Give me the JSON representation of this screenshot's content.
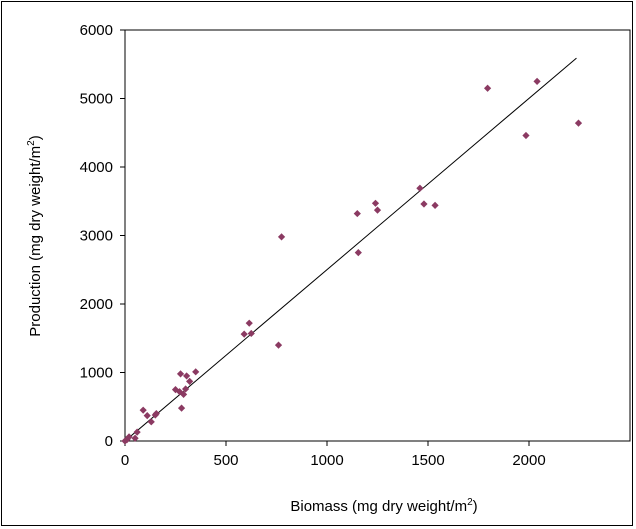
{
  "chart_data": {
    "type": "scatter",
    "title": "",
    "xlabel": "Biomass (mg dry weight/m",
    "xlabel_sup": "2",
    "xlabel_end": ")",
    "ylabel": "Production (mg dry weight/m",
    "ylabel_sup": "2",
    "ylabel_end": ")",
    "xlim": [
      0,
      2500
    ],
    "ylim": [
      0,
      6000
    ],
    "x_ticks": [
      0,
      500,
      1000,
      1500,
      2000
    ],
    "y_ticks": [
      0,
      1000,
      2000,
      3000,
      4000,
      5000,
      6000
    ],
    "grid": false,
    "legend": "none",
    "marker_color": "#8b3a62",
    "series": [
      {
        "points": [
          {
            "x": 0,
            "y": 0
          },
          {
            "x": 10,
            "y": 20
          },
          {
            "x": 20,
            "y": 60
          },
          {
            "x": 50,
            "y": 40
          },
          {
            "x": 60,
            "y": 130
          },
          {
            "x": 90,
            "y": 450
          },
          {
            "x": 110,
            "y": 370
          },
          {
            "x": 130,
            "y": 280
          },
          {
            "x": 150,
            "y": 380
          },
          {
            "x": 155,
            "y": 400
          },
          {
            "x": 250,
            "y": 750
          },
          {
            "x": 270,
            "y": 720
          },
          {
            "x": 275,
            "y": 980
          },
          {
            "x": 280,
            "y": 480
          },
          {
            "x": 290,
            "y": 680
          },
          {
            "x": 300,
            "y": 760
          },
          {
            "x": 305,
            "y": 950
          },
          {
            "x": 320,
            "y": 870
          },
          {
            "x": 350,
            "y": 1010
          },
          {
            "x": 590,
            "y": 1560
          },
          {
            "x": 615,
            "y": 1720
          },
          {
            "x": 625,
            "y": 1570
          },
          {
            "x": 760,
            "y": 1400
          },
          {
            "x": 775,
            "y": 2980
          },
          {
            "x": 1150,
            "y": 3320
          },
          {
            "x": 1155,
            "y": 2750
          },
          {
            "x": 1240,
            "y": 3470
          },
          {
            "x": 1250,
            "y": 3370
          },
          {
            "x": 1460,
            "y": 3690
          },
          {
            "x": 1480,
            "y": 3460
          },
          {
            "x": 1535,
            "y": 3440
          },
          {
            "x": 1795,
            "y": 5150
          },
          {
            "x": 1985,
            "y": 4460
          },
          {
            "x": 2040,
            "y": 5250
          },
          {
            "x": 2245,
            "y": 4640
          }
        ]
      }
    ],
    "trendline": {
      "x1": 0,
      "y1": 0,
      "x2": 2235,
      "y2": 5590,
      "color": "#000000"
    }
  }
}
